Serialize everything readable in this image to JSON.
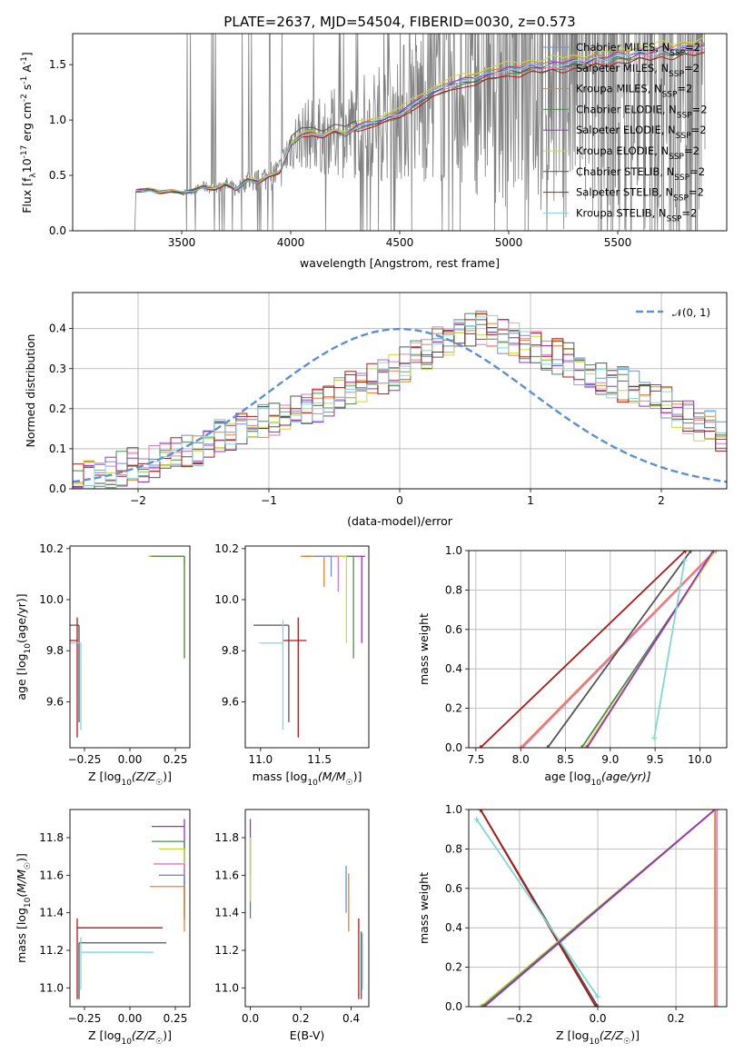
{
  "title": "PLATE=2637, MJD=54504, FIBERID=0030, z=0.573",
  "colors": {
    "Chabrier MILES": "#6a8fd8",
    "Salpeter MILES": "#e377c2",
    "Kroupa MILES": "#e8822e",
    "Chabrier ELODIE": "#4c8c4c",
    "Salpeter ELODIE": "#9b30c8",
    "Kroupa ELODIE": "#c8dc3c",
    "Chabrier STELIB": "#555555",
    "Salpeter STELIB": "#b01818",
    "Kroupa STELIB": "#7dd9d9",
    "data": "#808080",
    "normal": "#5b8fd6"
  },
  "chart_data": [
    {
      "type": "line",
      "id": "spectrum",
      "xlabel": "wavelength [Angstrom, rest frame]",
      "ylabel_parts": [
        "Flux [f",
        "λ",
        "10",
        "-17",
        " erg cm",
        "-2",
        " s",
        "-1",
        " A",
        "-1",
        "]"
      ],
      "xlim": [
        3000,
        6000
      ],
      "ylim": [
        0,
        1.78
      ],
      "xticks": [
        3500,
        4000,
        4500,
        5000,
        5500
      ],
      "yticks": [
        0.0,
        0.5,
        1.0,
        1.5
      ],
      "ytick_labels": [
        "0.0",
        "0.5",
        "1.0",
        "1.5"
      ],
      "data_range": [
        3290,
        5900
      ],
      "model_knots": {
        "x": [
          3290,
          3350,
          3400,
          3450,
          3500,
          3550,
          3600,
          3650,
          3700,
          3750,
          3800,
          3850,
          3900,
          3950,
          4000,
          4050,
          4100,
          4150,
          4200,
          4250,
          4300,
          4350,
          4400,
          4450,
          4500,
          4550,
          4600,
          4650,
          4700,
          4750,
          4800,
          4850,
          4900,
          4950,
          5000,
          5050,
          5100,
          5150,
          5200,
          5250,
          5300,
          5350,
          5400,
          5450,
          5500,
          5550,
          5600,
          5650,
          5700,
          5750,
          5800,
          5850,
          5900
        ],
        "y": [
          0.36,
          0.37,
          0.35,
          0.36,
          0.34,
          0.36,
          0.4,
          0.38,
          0.42,
          0.37,
          0.46,
          0.44,
          0.5,
          0.52,
          0.78,
          0.86,
          0.88,
          0.85,
          0.9,
          0.87,
          0.93,
          0.96,
          0.98,
          1.02,
          1.05,
          1.12,
          1.18,
          1.24,
          1.28,
          1.32,
          1.35,
          1.36,
          1.4,
          1.42,
          1.45,
          1.44,
          1.48,
          1.46,
          1.5,
          1.48,
          1.52,
          1.5,
          1.55,
          1.53,
          1.58,
          1.56,
          1.6,
          1.58,
          1.63,
          1.6,
          1.64,
          1.62,
          1.66
        ]
      },
      "legend_position": "top-right",
      "legend": [
        {
          "name": "Chabrier MILES",
          "text": "Chabrier MILES, N",
          "sub": "SSP",
          "tail": "=2"
        },
        {
          "name": "Salpeter MILES",
          "text": "Salpeter MILES, N",
          "sub": "SSP",
          "tail": "=2"
        },
        {
          "name": "Kroupa MILES",
          "text": "Kroupa MILES, N",
          "sub": "SSP",
          "tail": "=2"
        },
        {
          "name": "Chabrier ELODIE",
          "text": "Chabrier ELODIE, N",
          "sub": "SSP",
          "tail": "=2"
        },
        {
          "name": "Salpeter ELODIE",
          "text": "Salpeter ELODIE, N",
          "sub": "SSP",
          "tail": "=2"
        },
        {
          "name": "Kroupa ELODIE",
          "text": "Kroupa ELODIE, N",
          "sub": "SSP",
          "tail": "=2"
        },
        {
          "name": "Chabrier STELIB",
          "text": "Chabrier STELIB, N",
          "sub": "SSP",
          "tail": "=2"
        },
        {
          "name": "Salpeter STELIB",
          "text": "Salpeter STELIB, N",
          "sub": "SSP",
          "tail": "=2"
        },
        {
          "name": "Kroupa STELIB",
          "text": "Kroupa STELIB, N",
          "sub": "SSP",
          "tail": "=2"
        }
      ]
    },
    {
      "type": "line",
      "id": "residuals",
      "xlabel": "(data-model)/error",
      "ylabel": "Normed distribution",
      "xlim": [
        -2.5,
        2.5
      ],
      "ylim": [
        0,
        0.49
      ],
      "xticks": [
        -2,
        -1,
        0,
        1,
        2
      ],
      "xtick_labels": [
        "−2",
        "−1",
        "0",
        "1",
        "2"
      ],
      "yticks": [
        0.0,
        0.1,
        0.2,
        0.3,
        0.4
      ],
      "ytick_labels": [
        "0.0",
        "0.1",
        "0.2",
        "0.3",
        "0.4"
      ],
      "grid": true,
      "bin_edges_start": -2.5,
      "bin_width": 0.0833,
      "base_hist": [
        0.02,
        0.03,
        0.03,
        0.04,
        0.05,
        0.06,
        0.06,
        0.07,
        0.08,
        0.09,
        0.09,
        0.1,
        0.12,
        0.13,
        0.14,
        0.15,
        0.16,
        0.17,
        0.17,
        0.18,
        0.19,
        0.2,
        0.21,
        0.22,
        0.24,
        0.25,
        0.26,
        0.27,
        0.28,
        0.29,
        0.31,
        0.33,
        0.34,
        0.36,
        0.37,
        0.38,
        0.4,
        0.4,
        0.39,
        0.38,
        0.37,
        0.36,
        0.35,
        0.34,
        0.33,
        0.32,
        0.3,
        0.29,
        0.28,
        0.27,
        0.26,
        0.25,
        0.24,
        0.22,
        0.21,
        0.19,
        0.18,
        0.16,
        0.15,
        0.13
      ],
      "legend": [
        {
          "name": "normal",
          "text": "𝒩(0, 1)"
        }
      ],
      "legend_position": "top-right"
    },
    {
      "type": "scatter",
      "id": "age-vs-Z",
      "xlabel_parts": [
        "Z [log",
        "10",
        "(Z/Z",
        "☉",
        ")]"
      ],
      "ylabel_parts": [
        "age  [log",
        "10",
        "(age/yr)]"
      ],
      "xlim": [
        -0.33,
        0.33
      ],
      "ylim": [
        9.42,
        10.21
      ],
      "xticks": [
        -0.25,
        0.0,
        0.25
      ],
      "xtick_labels": [
        "−0.25",
        "0.00",
        "0.25"
      ],
      "yticks": [
        9.6,
        9.8,
        10.0,
        10.2
      ],
      "ytick_labels": [
        "9.6",
        "9.8",
        "10.0",
        "10.2"
      ],
      "points": [
        {
          "name": "Chabrier STELIB",
          "x": -0.28,
          "xerr": [
            0.48,
            0
          ],
          "y": 9.9,
          "yerr": [
            0.38,
            0
          ]
        },
        {
          "name": "Salpeter STELIB",
          "x": -0.29,
          "xerr": [
            0.47,
            0
          ],
          "y": 9.84,
          "yerr": [
            0.38,
            0.09
          ]
        },
        {
          "name": "Kroupa STELIB",
          "x": -0.27,
          "xerr": [
            0.4,
            0
          ],
          "y": 9.83,
          "yerr": [
            0.34,
            0
          ]
        },
        {
          "name": "Kroupa ELODIE",
          "x": 0.3,
          "xerr": [
            0.2,
            0
          ],
          "y": 10.17,
          "yerr": [
            0.4,
            0
          ]
        },
        {
          "name": "Kroupa MILES",
          "x": 0.3,
          "xerr": [
            0.19,
            0
          ],
          "y": 10.17,
          "yerr": [
            0.03,
            0
          ]
        },
        {
          "name": "Chabrier ELODIE",
          "x": 0.3,
          "xerr": [
            0.18,
            0
          ],
          "y": 10.17,
          "yerr": [
            0.4,
            0
          ]
        }
      ]
    },
    {
      "type": "scatter",
      "id": "age-vs-mass",
      "xlabel_parts": [
        "mass [log",
        "10",
        "(M/M",
        "☉",
        ")]"
      ],
      "xlim": [
        10.87,
        11.92
      ],
      "ylim": [
        9.42,
        10.21
      ],
      "xticks": [
        11.0,
        11.5
      ],
      "xtick_labels": [
        "11.0",
        "11.5"
      ],
      "yticks": [
        9.6,
        9.8,
        10.0,
        10.2
      ],
      "ytick_labels": [
        "9.6",
        "9.8",
        "10.0",
        "10.2"
      ],
      "points": [
        {
          "name": "Chabrier STELIB",
          "x": 11.24,
          "xerr": [
            0.3,
            0
          ],
          "y": 9.9,
          "yerr": [
            0.38,
            0
          ]
        },
        {
          "name": "Salpeter STELIB",
          "x": 11.32,
          "xerr": [
            0.13,
            0.07
          ],
          "y": 9.84,
          "yerr": [
            0.38,
            0.09
          ]
        },
        {
          "name": "Kroupa STELIB",
          "x": 11.19,
          "xerr": [
            0.2,
            0
          ],
          "y": 9.83,
          "yerr": [
            0.34,
            0.09
          ]
        },
        {
          "name": "Salpeter ELODIE",
          "x": 11.86,
          "xerr": [
            0.5,
            0.03
          ],
          "y": 10.17,
          "yerr": [
            0.34,
            0
          ]
        },
        {
          "name": "Chabrier ELODIE",
          "x": 11.79,
          "xerr": [
            0.4,
            0
          ],
          "y": 10.17,
          "yerr": [
            0.4,
            0
          ]
        },
        {
          "name": "Kroupa ELODIE",
          "x": 11.73,
          "xerr": [
            0.3,
            0
          ],
          "y": 10.17,
          "yerr": [
            0.34,
            0
          ]
        },
        {
          "name": "Kroupa MILES",
          "x": 11.54,
          "xerr": [
            0.2,
            0
          ],
          "y": 10.17,
          "yerr": [
            0.12,
            0
          ]
        },
        {
          "name": "Salpeter MILES",
          "x": 11.66,
          "xerr": [
            0.2,
            0
          ],
          "y": 10.17,
          "yerr": [
            0.14,
            0
          ]
        },
        {
          "name": "Chabrier MILES",
          "x": 11.6,
          "xerr": [
            0.15,
            0
          ],
          "y": 10.17,
          "yerr": [
            0.08,
            0
          ]
        }
      ]
    },
    {
      "type": "line",
      "id": "massweight-vs-age",
      "xlabel_parts": [
        "age  [log",
        "10",
        "(age/yr)]"
      ],
      "ylabel": "mass weight",
      "xlim": [
        7.42,
        10.3
      ],
      "ylim": [
        0,
        1
      ],
      "xticks": [
        7.5,
        8.0,
        8.5,
        9.0,
        9.5,
        10.0
      ],
      "xtick_labels": [
        "7.5",
        "8.0",
        "8.5",
        "9.0",
        "9.5",
        "10.0"
      ],
      "yticks": [
        0.0,
        0.2,
        0.4,
        0.6,
        0.8,
        1.0
      ],
      "ytick_labels": [
        "0.0",
        "0.2",
        "0.4",
        "0.6",
        "0.8",
        "1.0"
      ],
      "grid": true,
      "series": [
        {
          "name": "Salpeter STELIB",
          "x": [
            7.55,
            9.84
          ],
          "y": [
            0.0,
            1.0
          ]
        },
        {
          "name": "Kroupa MILES",
          "x": [
            8.0,
            10.17
          ],
          "y": [
            0.0,
            1.0
          ]
        },
        {
          "name": "Salpeter MILES",
          "x": [
            8.02,
            10.18
          ],
          "y": [
            0.0,
            1.0
          ]
        },
        {
          "name": "Chabrier STELIB",
          "x": [
            8.3,
            9.9
          ],
          "y": [
            0.0,
            1.0
          ]
        },
        {
          "name": "Chabrier ELODIE",
          "x": [
            8.68,
            10.17
          ],
          "y": [
            0.0,
            1.0
          ]
        },
        {
          "name": "Kroupa ELODIE",
          "x": [
            8.72,
            10.17
          ],
          "y": [
            0.0,
            1.0
          ]
        },
        {
          "name": "Salpeter ELODIE",
          "x": [
            8.74,
            10.15
          ],
          "y": [
            0.0,
            1.0
          ]
        },
        {
          "name": "Kroupa STELIB",
          "x": [
            9.49,
            9.83
          ],
          "y": [
            0.05,
            0.95
          ]
        }
      ]
    },
    {
      "type": "scatter",
      "id": "mass-vs-Z",
      "xlabel_parts": [
        "Z [log",
        "10",
        "(Z/Z",
        "☉",
        ")]"
      ],
      "ylabel_parts": [
        "mass [log",
        "10",
        "(M/M",
        "☉",
        ")]"
      ],
      "xlim": [
        -0.33,
        0.33
      ],
      "ylim": [
        10.9,
        11.95
      ],
      "xticks": [
        -0.25,
        0.0,
        0.25
      ],
      "xtick_labels": [
        "−0.25",
        "0.00",
        "0.25"
      ],
      "yticks": [
        11.0,
        11.2,
        11.4,
        11.6,
        11.8
      ],
      "ytick_labels": [
        "11.0",
        "11.2",
        "11.4",
        "11.6",
        "11.8"
      ],
      "points": [
        {
          "name": "Salpeter STELIB",
          "x": -0.29,
          "xerr": [
            0,
            0.47
          ],
          "y": 11.32,
          "yerr": [
            0.38,
            0.05
          ]
        },
        {
          "name": "Chabrier STELIB",
          "x": -0.28,
          "xerr": [
            0,
            0.48
          ],
          "y": 11.24,
          "yerr": [
            0.3,
            0
          ]
        },
        {
          "name": "Kroupa STELIB",
          "x": -0.27,
          "xerr": [
            0,
            0.4
          ],
          "y": 11.19,
          "yerr": [
            0.2,
            0.08
          ]
        },
        {
          "name": "Salpeter ELODIE",
          "x": 0.3,
          "xerr": [
            0.18,
            0
          ],
          "y": 11.86,
          "yerr": [
            0.5,
            0.04
          ]
        },
        {
          "name": "Chabrier ELODIE",
          "x": 0.3,
          "xerr": [
            0.18,
            0
          ],
          "y": 11.78,
          "yerr": [
            0.4,
            0
          ]
        },
        {
          "name": "Kroupa ELODIE",
          "x": 0.3,
          "xerr": [
            0.14,
            0
          ],
          "y": 11.74,
          "yerr": [
            0.3,
            0
          ]
        },
        {
          "name": "Salpeter MILES",
          "x": 0.3,
          "xerr": [
            0.17,
            0
          ],
          "y": 11.66,
          "yerr": [
            0.2,
            0
          ]
        },
        {
          "name": "Chabrier MILES",
          "x": 0.3,
          "xerr": [
            0.14,
            0
          ],
          "y": 11.6,
          "yerr": [
            0.15,
            0
          ]
        },
        {
          "name": "Kroupa MILES",
          "x": 0.3,
          "xerr": [
            0.19,
            0
          ],
          "y": 11.54,
          "yerr": [
            0.24,
            0
          ]
        }
      ]
    },
    {
      "type": "scatter",
      "id": "mass-vs-EBV",
      "xlabel": "E(B-V)",
      "xlim": [
        -0.02,
        0.47
      ],
      "ylim": [
        10.9,
        11.95
      ],
      "xticks": [
        0.0,
        0.2,
        0.4
      ],
      "xtick_labels": [
        "0.0",
        "0.2",
        "0.4"
      ],
      "yticks": [
        11.0,
        11.2,
        11.4,
        11.6,
        11.8
      ],
      "ytick_labels": [
        "11.0",
        "11.2",
        "11.4",
        "11.6",
        "11.8"
      ],
      "points": [
        {
          "name": "Salpeter ELODIE",
          "x": 0.0,
          "y": 11.74,
          "yerr": [
            0.14,
            0.16
          ]
        },
        {
          "name": "Chabrier ELODIE",
          "x": 0.0,
          "y": 11.62,
          "yerr": [
            0.25,
            0.17
          ]
        },
        {
          "name": "Kroupa ELODIE",
          "x": 0.0,
          "y": 11.6,
          "yerr": [
            0.14,
            0.2
          ]
        },
        {
          "name": "Chabrier MILES",
          "x": 0.38,
          "y": 11.52,
          "yerr": [
            0.12,
            0.13
          ]
        },
        {
          "name": "Kroupa MILES",
          "x": 0.39,
          "y": 11.45,
          "yerr": [
            0.15,
            0.16
          ]
        },
        {
          "name": "Salpeter STELIB",
          "x": 0.43,
          "y": 11.32,
          "yerr": [
            0.38,
            0.05
          ]
        },
        {
          "name": "Chabrier STELIB",
          "x": 0.44,
          "y": 11.24,
          "yerr": [
            0.3,
            0.06
          ]
        },
        {
          "name": "Kroupa STELIB",
          "x": 0.445,
          "y": 11.19,
          "yerr": [
            0.2,
            0.1
          ]
        }
      ]
    },
    {
      "type": "line",
      "id": "massweight-vs-Z",
      "xlabel_parts": [
        "Z [log",
        "10",
        "(Z/Z",
        "☉",
        ")]"
      ],
      "ylabel": "mass weight",
      "xlim": [
        -0.33,
        0.33
      ],
      "ylim": [
        0,
        1
      ],
      "xticks": [
        -0.2,
        0.0,
        0.2
      ],
      "xtick_labels": [
        "−0.2",
        "0.0",
        "0.2"
      ],
      "yticks": [
        0.0,
        0.2,
        0.4,
        0.6,
        0.8,
        1.0
      ],
      "ytick_labels": [
        "0.0",
        "0.2",
        "0.4",
        "0.6",
        "0.8",
        "1.0"
      ],
      "grid": true,
      "series": [
        {
          "name": "Chabrier STELIB",
          "x": [
            -0.3,
            0.0
          ],
          "y": [
            1.0,
            0.0
          ]
        },
        {
          "name": "Salpeter STELIB",
          "x": [
            -0.3,
            -0.005
          ],
          "y": [
            1.0,
            0.0
          ]
        },
        {
          "name": "Kroupa STELIB",
          "x": [
            -0.31,
            0.0
          ],
          "y": [
            0.95,
            0.05
          ]
        },
        {
          "name": "Kroupa ELODIE",
          "x": [
            -0.3,
            0.3
          ],
          "y": [
            0.0,
            1.0
          ]
        },
        {
          "name": "Chabrier ELODIE",
          "x": [
            -0.295,
            0.3
          ],
          "y": [
            0.0,
            1.0
          ]
        },
        {
          "name": "Salpeter ELODIE",
          "x": [
            -0.29,
            0.3
          ],
          "y": [
            0.0,
            1.0
          ]
        },
        {
          "name": "Kroupa MILES",
          "x": [
            0.3,
            0.3
          ],
          "y": [
            0.0,
            1.0
          ]
        },
        {
          "name": "Salpeter MILES",
          "x": [
            0.305,
            0.305
          ],
          "y": [
            0.0,
            1.0
          ]
        }
      ]
    }
  ]
}
